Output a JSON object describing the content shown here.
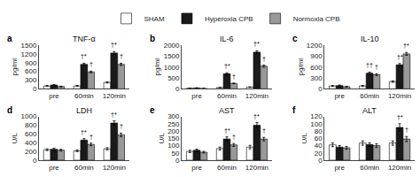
{
  "chart_data": [
    {
      "type": "bar",
      "panel": "a",
      "title": "TNF-α",
      "ylabel": "pg/ml",
      "categories": [
        "pre",
        "60min",
        "120min"
      ],
      "series": [
        {
          "name": "SHAM",
          "color": "#ffffff",
          "values": [
            100,
            100,
            220
          ],
          "errors": [
            15,
            15,
            20
          ]
        },
        {
          "name": "Hyperoxia CPB",
          "color": "#1a1a1a",
          "values": [
            130,
            840,
            1230
          ],
          "errors": [
            15,
            40,
            50
          ]
        },
        {
          "name": "Normoxia CPB",
          "color": "#999999",
          "values": [
            80,
            580,
            840
          ],
          "errors": [
            12,
            30,
            40
          ]
        }
      ],
      "ylim": [
        0,
        1500
      ],
      "yticks": [
        0,
        300,
        600,
        900,
        1200,
        1500
      ],
      "grid": false,
      "legend": "top",
      "annotations": [
        {
          "category": "60min",
          "series": "Hyperoxia CPB",
          "text": "†*"
        },
        {
          "category": "60min",
          "series": "Normoxia CPB",
          "text": "†"
        },
        {
          "category": "120min",
          "series": "Hyperoxia CPB",
          "text": "†*"
        },
        {
          "category": "120min",
          "series": "Normoxia CPB",
          "text": "†"
        }
      ]
    },
    {
      "type": "bar",
      "panel": "b",
      "title": "IL-6",
      "ylabel": "pg/ml",
      "categories": [
        "pre",
        "60min",
        "120min"
      ],
      "series": [
        {
          "name": "SHAM",
          "color": "#ffffff",
          "values": [
            30,
            60,
            80
          ],
          "errors": [
            5,
            8,
            10
          ]
        },
        {
          "name": "Hyperoxia CPB",
          "color": "#1a1a1a",
          "values": [
            40,
            690,
            1680
          ],
          "errors": [
            10,
            40,
            60
          ]
        },
        {
          "name": "Normoxia CPB",
          "color": "#999999",
          "values": [
            20,
            250,
            1040
          ],
          "errors": [
            5,
            15,
            50
          ]
        }
      ],
      "ylim": [
        0,
        2000
      ],
      "yticks": [
        0,
        500,
        1000,
        1500,
        2000
      ],
      "grid": false,
      "legend": "top",
      "annotations": [
        {
          "category": "60min",
          "series": "Hyperoxia CPB",
          "text": "†*"
        },
        {
          "category": "60min",
          "series": "Normoxia CPB",
          "text": "†"
        },
        {
          "category": "120min",
          "series": "Hyperoxia CPB",
          "text": "†*"
        },
        {
          "category": "120min",
          "series": "Normoxia CPB",
          "text": "†"
        }
      ]
    },
    {
      "type": "bar",
      "panel": "c",
      "title": "IL-10",
      "ylabel": "pg/ml",
      "categories": [
        "pre",
        "60min",
        "120min"
      ],
      "series": [
        {
          "name": "SHAM",
          "color": "#ffffff",
          "values": [
            80,
            80,
            200
          ],
          "errors": [
            12,
            15,
            20
          ]
        },
        {
          "name": "Hyperoxia CPB",
          "color": "#1a1a1a",
          "values": [
            90,
            430,
            660
          ],
          "errors": [
            15,
            30,
            35
          ]
        },
        {
          "name": "Normoxia CPB",
          "color": "#999999",
          "values": [
            60,
            390,
            960
          ],
          "errors": [
            10,
            25,
            40
          ]
        }
      ],
      "ylim": [
        0,
        1200
      ],
      "yticks": [
        0,
        300,
        600,
        900,
        1200
      ],
      "grid": false,
      "legend": "top",
      "annotations": [
        {
          "category": "60min",
          "series": "Hyperoxia CPB",
          "text": "††"
        },
        {
          "category": "60min",
          "series": "Normoxia CPB",
          "text": "†"
        },
        {
          "category": "120min",
          "series": "Hyperoxia CPB",
          "text": "†*"
        },
        {
          "category": "120min",
          "series": "Normoxia CPB",
          "text": "†*"
        }
      ]
    },
    {
      "type": "bar",
      "panel": "d",
      "title": "LDH",
      "ylabel": "U/L",
      "categories": [
        "pre",
        "60min",
        "120min"
      ],
      "series": [
        {
          "name": "SHAM",
          "color": "#ffffff",
          "values": [
            240,
            215,
            260
          ],
          "errors": [
            20,
            20,
            25
          ]
        },
        {
          "name": "Hyperoxia CPB",
          "color": "#1a1a1a",
          "values": [
            250,
            460,
            850
          ],
          "errors": [
            25,
            35,
            50
          ]
        },
        {
          "name": "Normoxia CPB",
          "color": "#999999",
          "values": [
            230,
            360,
            580
          ],
          "errors": [
            20,
            30,
            40
          ]
        }
      ],
      "ylim": [
        0,
        1000
      ],
      "yticks": [
        0,
        200,
        400,
        600,
        800,
        1000
      ],
      "grid": false,
      "legend": "top",
      "annotations": [
        {
          "category": "60min",
          "series": "Hyperoxia CPB",
          "text": "†*"
        },
        {
          "category": "60min",
          "series": "Normoxia CPB",
          "text": "†"
        },
        {
          "category": "120min",
          "series": "Hyperoxia CPB",
          "text": "†*"
        },
        {
          "category": "120min",
          "series": "Normoxia CPB",
          "text": "†"
        }
      ]
    },
    {
      "type": "bar",
      "panel": "e",
      "title": "AST",
      "ylabel": "U/L",
      "categories": [
        "pre",
        "60min",
        "120min"
      ],
      "series": [
        {
          "name": "SHAM",
          "color": "#ffffff",
          "values": [
            60,
            80,
            90
          ],
          "errors": [
            8,
            10,
            12
          ]
        },
        {
          "name": "Hyperoxia CPB",
          "color": "#1a1a1a",
          "values": [
            68,
            145,
            240
          ],
          "errors": [
            8,
            15,
            18
          ]
        },
        {
          "name": "Normoxia CPB",
          "color": "#999999",
          "values": [
            55,
            105,
            145
          ],
          "errors": [
            6,
            10,
            12
          ]
        }
      ],
      "ylim": [
        0,
        300
      ],
      "yticks": [
        0,
        50,
        100,
        150,
        200,
        250,
        300
      ],
      "grid": false,
      "legend": "top",
      "annotations": [
        {
          "category": "60min",
          "series": "Hyperoxia CPB",
          "text": "†*"
        },
        {
          "category": "60min",
          "series": "Normoxia CPB",
          "text": "†"
        },
        {
          "category": "120min",
          "series": "Hyperoxia CPB",
          "text": "†*"
        },
        {
          "category": "120min",
          "series": "Normoxia CPB",
          "text": "†"
        }
      ]
    },
    {
      "type": "bar",
      "panel": "f",
      "title": "ALT",
      "ylabel": "U/L",
      "categories": [
        "pre",
        "60min",
        "120min"
      ],
      "series": [
        {
          "name": "SHAM",
          "color": "#ffffff",
          "values": [
            42,
            47,
            47
          ],
          "errors": [
            5,
            6,
            6
          ]
        },
        {
          "name": "Hyperoxia CPB",
          "color": "#1a1a1a",
          "values": [
            36,
            43,
            90
          ],
          "errors": [
            4,
            5,
            10
          ]
        },
        {
          "name": "Normoxia CPB",
          "color": "#999999",
          "values": [
            34,
            40,
            58
          ],
          "errors": [
            4,
            5,
            7
          ]
        }
      ],
      "ylim": [
        0,
        120
      ],
      "yticks": [
        0,
        20,
        40,
        60,
        80,
        100,
        120
      ],
      "grid": false,
      "legend": "top",
      "annotations": [
        {
          "category": "120min",
          "series": "Hyperoxia CPB",
          "text": "†*"
        },
        {
          "category": "120min",
          "series": "Normoxia CPB",
          "text": "†"
        }
      ]
    }
  ]
}
